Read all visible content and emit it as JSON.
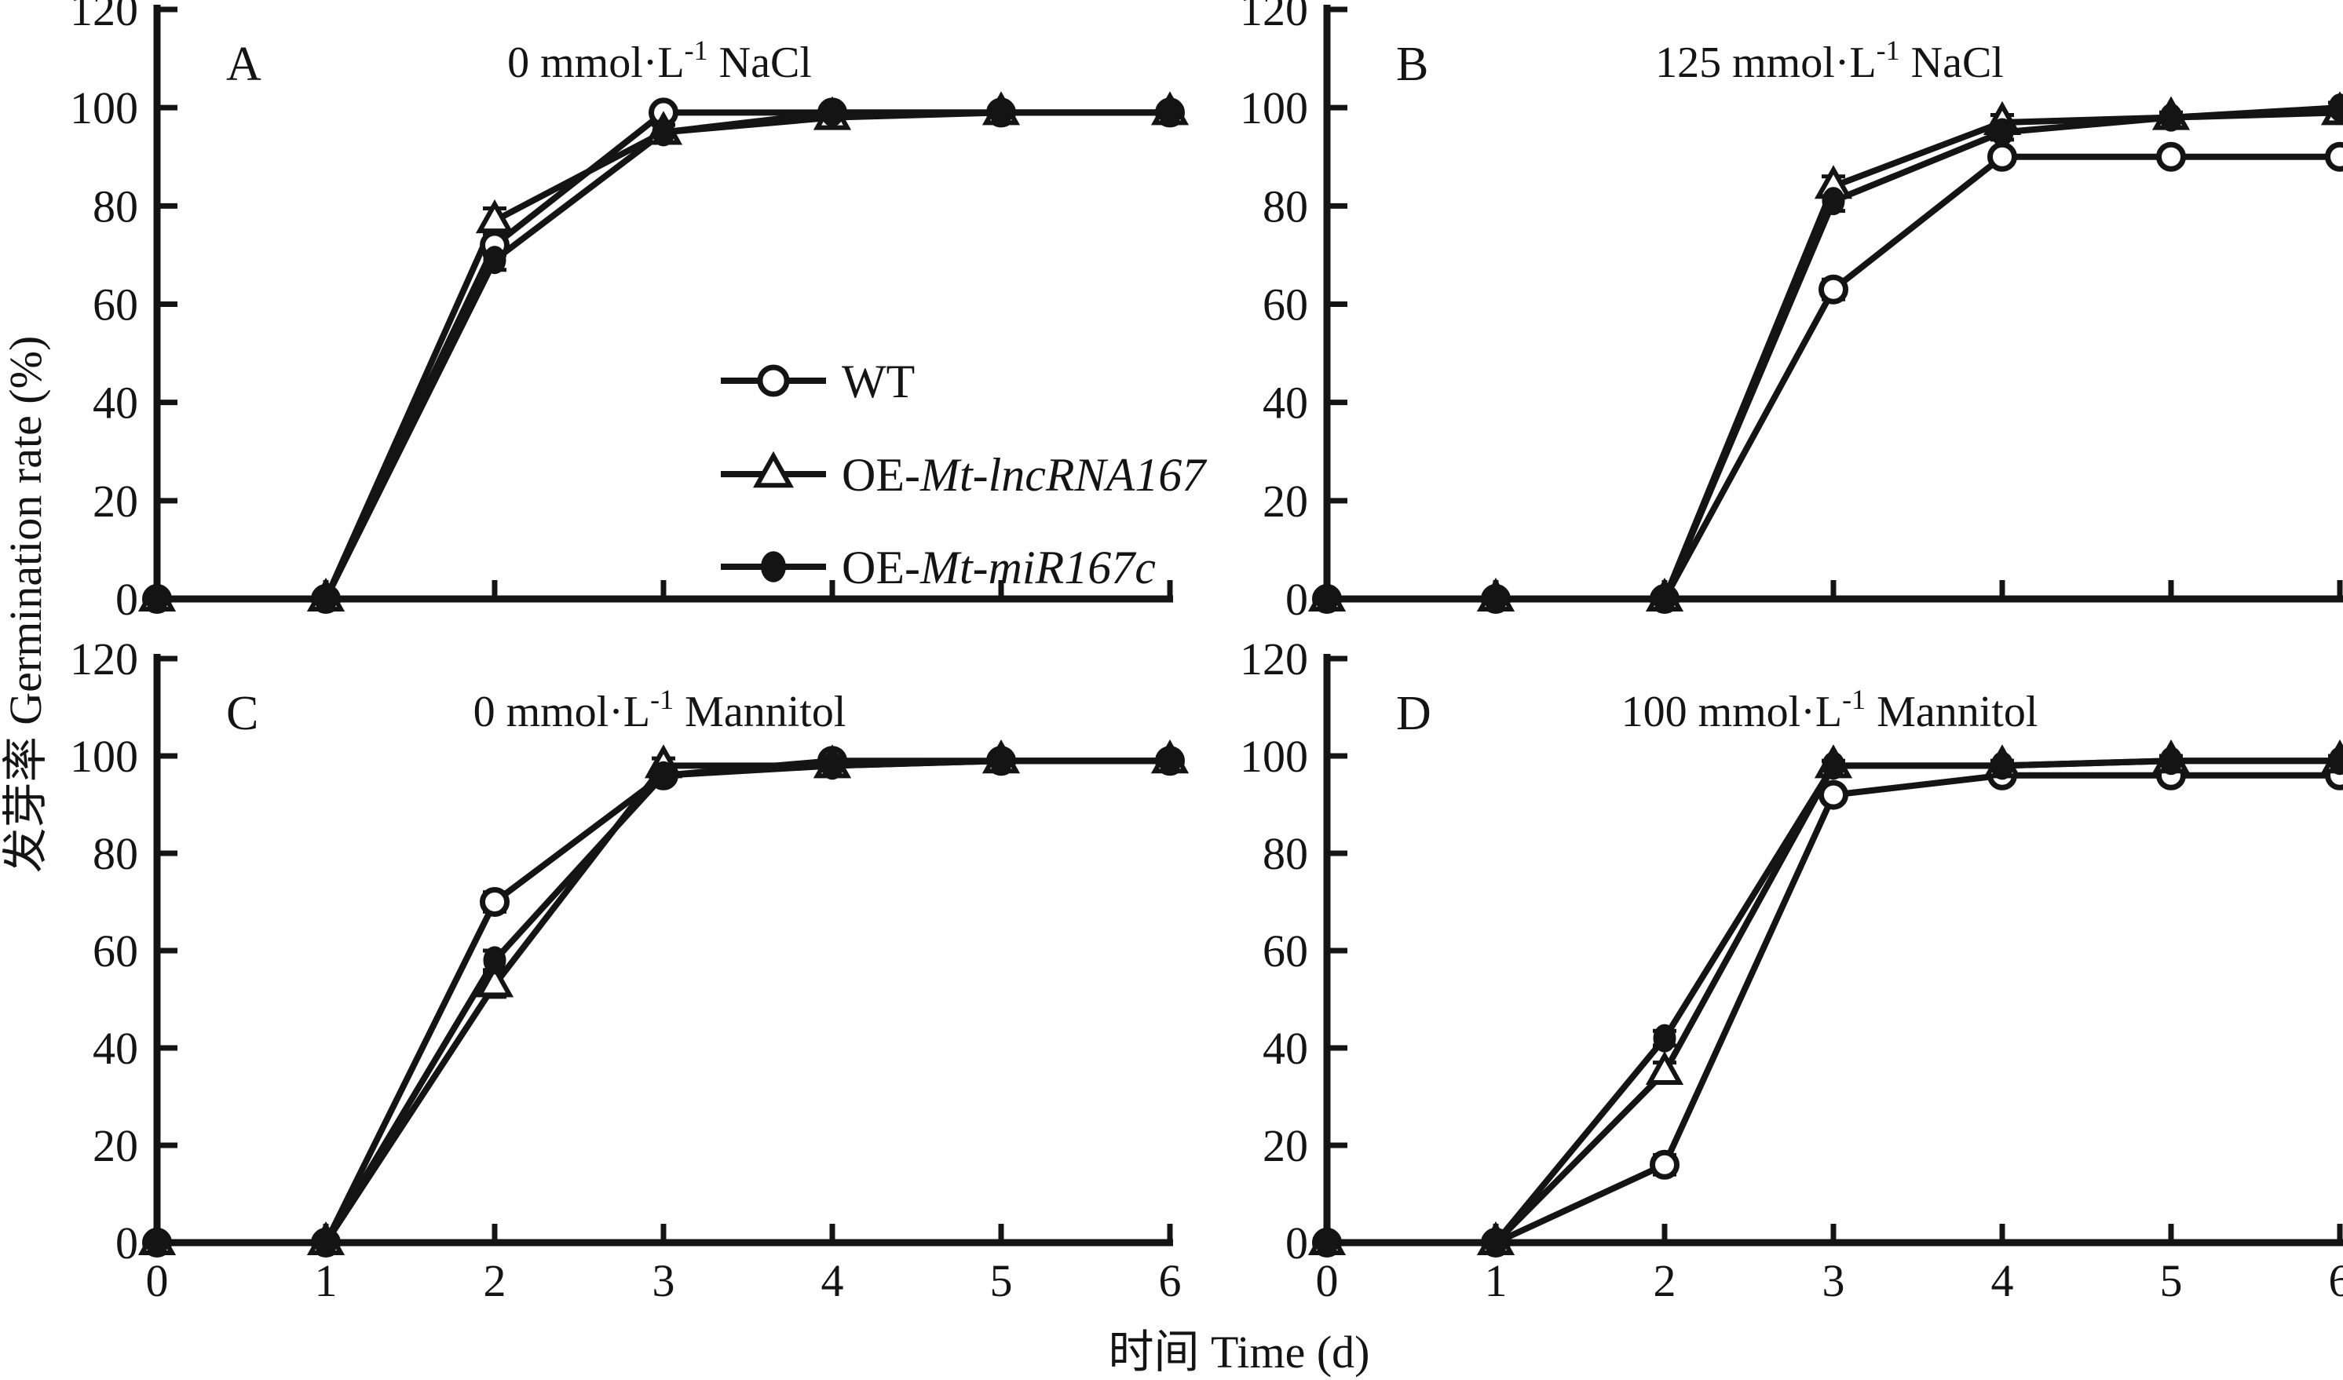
{
  "figure": {
    "xlabel": "时间 Time (d)",
    "ylabel": "发芽率 Germination rate (%)",
    "ink_color": "#141414",
    "background_color": "#ffffff"
  },
  "legend": {
    "items": [
      {
        "marker": "open-circle",
        "label_prefix": "WT",
        "label_italic": ""
      },
      {
        "marker": "open-triangle",
        "label_prefix": "OE-",
        "label_italic": "Mt-lncRNA167"
      },
      {
        "marker": "filled-circle",
        "label_prefix": "OE-",
        "label_italic": "Mt-miR167c"
      }
    ]
  },
  "chart_data": {
    "type": "line",
    "x": [
      0,
      1,
      2,
      3,
      4,
      5,
      6
    ],
    "x_ticks": [
      "0",
      "1",
      "2",
      "3",
      "4",
      "5",
      "6"
    ],
    "y_ticks": [
      "0",
      "20",
      "40",
      "60",
      "80",
      "100",
      "120"
    ],
    "ylim": [
      0,
      120
    ],
    "xlabel": "时间 Time (d)",
    "ylabel": "发芽率 Germination rate (%)",
    "legend_position": "inside panel A, lower right",
    "grid": false,
    "panels": [
      {
        "id": "A",
        "letter": "A",
        "title": {
          "prefix": "0 mmol·L",
          "sup": "-1",
          "suffix": " NaCl"
        },
        "series": [
          {
            "name": "WT",
            "marker": "open-circle",
            "values": [
              0,
              0,
              72,
              99,
              99,
              99,
              99
            ],
            "errors": [
              0,
              0,
              2,
              1,
              1,
              1,
              1
            ]
          },
          {
            "name": "OE-Mt-lncRNA167",
            "marker": "open-triangle",
            "values": [
              0,
              0,
              77,
              95,
              98,
              99,
              99
            ],
            "errors": [
              0,
              0,
              2.5,
              1.5,
              1,
              1,
              1
            ]
          },
          {
            "name": "OE-Mt-miR167c",
            "marker": "filled-circle",
            "values": [
              0,
              0,
              69,
              95,
              99,
              99,
              99
            ],
            "errors": [
              0,
              0,
              2,
              1.5,
              1,
              1,
              1
            ]
          }
        ]
      },
      {
        "id": "B",
        "letter": "B",
        "title": {
          "prefix": "125 mmol·L",
          "sup": "-1",
          "suffix": " NaCl"
        },
        "series": [
          {
            "name": "WT",
            "marker": "open-circle",
            "values": [
              0,
              0,
              0,
              63,
              90,
              90,
              90
            ],
            "errors": [
              0,
              0,
              0,
              2,
              1.5,
              1,
              1
            ]
          },
          {
            "name": "OE-Mt-lncRNA167",
            "marker": "open-triangle",
            "values": [
              0,
              0,
              0,
              84,
              97,
              98,
              99
            ],
            "errors": [
              0,
              0,
              0,
              2,
              1.5,
              1,
              1
            ]
          },
          {
            "name": "OE-Mt-miR167c",
            "marker": "filled-circle",
            "values": [
              0,
              0,
              0,
              81,
              95,
              98,
              100
            ],
            "errors": [
              0,
              0,
              0,
              2,
              1.5,
              1,
              1
            ]
          }
        ]
      },
      {
        "id": "C",
        "letter": "C",
        "title": {
          "prefix": "0 mmol·L",
          "sup": "-1",
          "suffix": " Mannitol"
        },
        "series": [
          {
            "name": "WT",
            "marker": "open-circle",
            "values": [
              0,
              0,
              70,
              96,
              99,
              99,
              99
            ],
            "errors": [
              0,
              0,
              2,
              1,
              1,
              1,
              1
            ]
          },
          {
            "name": "OE-Mt-lncRNA167",
            "marker": "open-triangle",
            "values": [
              0,
              0,
              53,
              98,
              98,
              99,
              99
            ],
            "errors": [
              0,
              0,
              2.5,
              1.5,
              1,
              1,
              1
            ]
          },
          {
            "name": "OE-Mt-miR167c",
            "marker": "filled-circle",
            "values": [
              0,
              0,
              58,
              96,
              98,
              99,
              99
            ],
            "errors": [
              0,
              0,
              2,
              1,
              1,
              1,
              1
            ]
          }
        ]
      },
      {
        "id": "D",
        "letter": "D",
        "title": {
          "prefix": "100 mmol·L",
          "sup": "-1",
          "suffix": " Mannitol"
        },
        "series": [
          {
            "name": "WT",
            "marker": "open-circle",
            "values": [
              0,
              0,
              16,
              92,
              96,
              96,
              96
            ],
            "errors": [
              0,
              0,
              2,
              1,
              1,
              1,
              1
            ]
          },
          {
            "name": "OE-Mt-lncRNA167",
            "marker": "open-triangle",
            "values": [
              0,
              0,
              35,
              98,
              98,
              99,
              99
            ],
            "errors": [
              0,
              0,
              2,
              1,
              1,
              1,
              1
            ]
          },
          {
            "name": "OE-Mt-miR167c",
            "marker": "filled-circle",
            "values": [
              0,
              0,
              42,
              98,
              98,
              99,
              99
            ],
            "errors": [
              0,
              0,
              1.5,
              1,
              1,
              1,
              1
            ]
          }
        ]
      }
    ]
  }
}
